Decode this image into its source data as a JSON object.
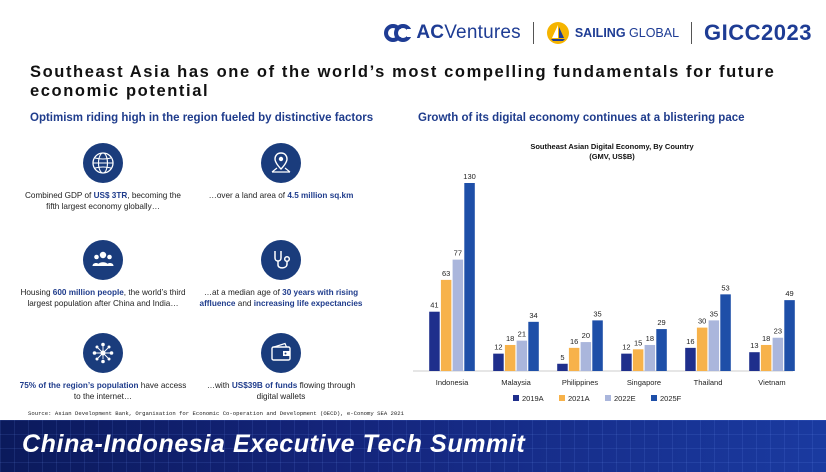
{
  "header": {
    "ac_logo_bold": "AC",
    "ac_logo_rest": "Ventures",
    "sailing_bold": "SAILING",
    "sailing_rest": " GLOBAL",
    "gicc": "GICC2023"
  },
  "title": "Southeast Asia has one of the world’s most compelling fundamentals for future economic potential",
  "left": {
    "subtitle": "Optimism riding high in the region fueled by distinctive factors",
    "factors": [
      {
        "icon": "globe-icon",
        "pre": "Combined GDP of ",
        "hl": "US$ 3TR",
        "post": ", becoming the fifth largest economy globally…"
      },
      {
        "icon": "map-pin-icon",
        "pre": "…over a land area of ",
        "hl": "4.5 million sq.km",
        "post": ""
      },
      {
        "icon": "people-icon",
        "pre": "Housing ",
        "hl": "600 million people",
        "post": ", the world’s third largest population after China and India…"
      },
      {
        "icon": "stethoscope-icon",
        "pre": "…at a median age of ",
        "hl": "30 years with rising affluence",
        "mid": " and ",
        "hl2": "increasing life expectancies",
        "post": ""
      },
      {
        "icon": "network-icon",
        "pre": "",
        "hl": "75% of the region’s population",
        "post": " have access to the internet…"
      },
      {
        "icon": "wallet-icon",
        "pre": "…with ",
        "hl": "US$39B of funds",
        "post": " flowing through digital wallets"
      }
    ]
  },
  "right": {
    "subtitle": "Growth of its digital economy continues at a blistering pace"
  },
  "chart_data": {
    "type": "bar",
    "title": "Southeast Asian Digital Economy, By Country",
    "subtitle": "(GMV, US$B)",
    "categories": [
      "Indonesia",
      "Malaysia",
      "Philippines",
      "Singapore",
      "Thailand",
      "Vietnam"
    ],
    "series": [
      {
        "name": "2019A",
        "color": "#1f2f8c",
        "values": [
          41,
          12,
          5,
          12,
          16,
          13
        ]
      },
      {
        "name": "2021A",
        "color": "#f7b24a",
        "values": [
          63,
          18,
          16,
          15,
          30,
          18
        ]
      },
      {
        "name": "2022E",
        "color": "#aab6dc",
        "values": [
          77,
          21,
          20,
          18,
          35,
          23
        ]
      },
      {
        "name": "2025F",
        "color": "#1e4fa8",
        "values": [
          130,
          34,
          35,
          29,
          53,
          49
        ]
      }
    ],
    "ylim": [
      0,
      130
    ]
  },
  "source": "Source: Asian Development Bank, Organisation for Economic Co-operation and Development (OECD), e-Conomy SEA 2021",
  "banner": {
    "title": "China-Indonesia Executive Tech Summit"
  },
  "colors": {
    "brand": "#1e3c94",
    "icon_bg": "#1a3c7c"
  }
}
